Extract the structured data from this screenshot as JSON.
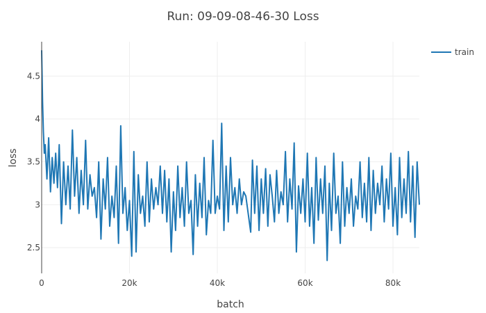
{
  "chart_data": {
    "type": "line",
    "title": "Run: 09-09-08-46-30 Loss",
    "xlabel": "batch",
    "ylabel": "loss",
    "xlim": [
      0,
      86000
    ],
    "ylim": [
      2.2,
      4.9
    ],
    "x_ticks": [
      0,
      20000,
      40000,
      60000,
      80000
    ],
    "x_tick_labels": [
      "0",
      "20k",
      "40k",
      "60k",
      "80k"
    ],
    "y_ticks": [
      2.5,
      3,
      3.5,
      4,
      4.5
    ],
    "y_tick_labels": [
      "2.5",
      "3",
      "3.5",
      "4",
      "4.5"
    ],
    "grid": true,
    "legend_position": "top-right",
    "series": [
      {
        "name": "train",
        "color": "#1f77b4",
        "x": [
          0,
          200,
          400,
          600,
          800,
          1200,
          1600,
          2000,
          2400,
          2800,
          3200,
          3600,
          4000,
          4500,
          5000,
          5500,
          6000,
          6500,
          7000,
          7500,
          8000,
          8500,
          9000,
          9500,
          10000,
          10500,
          11000,
          11500,
          12000,
          12500,
          13000,
          13500,
          14000,
          14500,
          15000,
          15500,
          16000,
          16500,
          17000,
          17500,
          18000,
          18500,
          19000,
          19500,
          20000,
          20500,
          21000,
          21500,
          22000,
          22500,
          23000,
          23500,
          24000,
          24500,
          25000,
          25500,
          26000,
          26500,
          27000,
          27500,
          28000,
          28500,
          29000,
          29500,
          30000,
          30500,
          31000,
          31500,
          32000,
          32500,
          33000,
          33500,
          34000,
          34500,
          35000,
          35500,
          36000,
          36500,
          37000,
          37500,
          38000,
          38500,
          39000,
          39500,
          40000,
          40500,
          41000,
          41500,
          42000,
          42500,
          43000,
          43500,
          44000,
          44500,
          45000,
          45500,
          46000,
          46500,
          47600,
          48000,
          48500,
          49000,
          49500,
          50000,
          50500,
          51000,
          51500,
          52000,
          52500,
          53000,
          53500,
          54000,
          54500,
          55000,
          55500,
          56000,
          56500,
          57000,
          57500,
          58000,
          58500,
          59000,
          59500,
          60000,
          60500,
          61000,
          61500,
          62000,
          62500,
          63000,
          63500,
          64000,
          64500,
          65000,
          65500,
          66000,
          66500,
          67000,
          67500,
          68000,
          68500,
          69000,
          69500,
          70000,
          70500,
          71000,
          71500,
          72000,
          72500,
          73000,
          73500,
          74000,
          74500,
          75000,
          75500,
          76000,
          76500,
          77000,
          77500,
          78000,
          78500,
          79000,
          79500,
          80000,
          80500,
          81000,
          81500,
          82000,
          82500,
          83000,
          83500,
          84000,
          84500,
          85000,
          85500,
          86000
        ],
        "y": [
          4.8,
          4.2,
          3.85,
          3.6,
          3.7,
          3.3,
          3.78,
          3.15,
          3.55,
          3.25,
          3.6,
          3.2,
          3.7,
          2.78,
          3.5,
          3.0,
          3.45,
          2.95,
          3.87,
          3.1,
          3.55,
          2.9,
          3.4,
          3.0,
          3.75,
          2.95,
          3.35,
          3.1,
          3.2,
          2.85,
          3.5,
          2.6,
          3.3,
          2.95,
          3.55,
          2.75,
          3.1,
          2.85,
          3.45,
          2.55,
          3.92,
          2.9,
          3.2,
          2.7,
          3.05,
          2.4,
          3.62,
          2.45,
          3.35,
          2.9,
          3.1,
          2.75,
          3.5,
          2.8,
          3.3,
          2.95,
          3.2,
          3.0,
          3.45,
          2.9,
          3.4,
          2.8,
          3.3,
          2.45,
          3.15,
          2.7,
          3.45,
          2.85,
          3.2,
          2.75,
          3.5,
          2.9,
          3.05,
          2.42,
          3.35,
          2.75,
          3.25,
          2.85,
          3.55,
          2.65,
          3.05,
          2.9,
          3.75,
          2.9,
          3.1,
          2.95,
          3.95,
          2.7,
          3.45,
          2.8,
          3.55,
          3.0,
          3.2,
          2.9,
          3.3,
          3.0,
          3.15,
          3.1,
          2.68,
          3.52,
          2.9,
          3.45,
          2.7,
          3.3,
          2.9,
          3.42,
          2.75,
          3.35,
          3.1,
          2.8,
          3.4,
          2.9,
          3.15,
          3.0,
          3.62,
          2.8,
          3.3,
          2.95,
          3.72,
          2.45,
          3.22,
          2.9,
          3.3,
          2.8,
          3.6,
          2.75,
          3.2,
          2.55,
          3.55,
          2.82,
          3.3,
          2.9,
          3.45,
          2.35,
          3.25,
          2.7,
          3.6,
          2.9,
          3.1,
          2.55,
          3.5,
          2.75,
          3.2,
          2.9,
          3.3,
          2.75,
          3.1,
          2.95,
          3.5,
          2.85,
          3.25,
          2.8,
          3.55,
          2.7,
          3.4,
          2.9,
          3.25,
          3.0,
          3.45,
          2.8,
          3.3,
          2.95,
          3.6,
          2.75,
          3.2,
          2.65,
          3.55,
          2.85,
          3.3,
          2.9,
          3.62,
          2.8,
          3.45,
          2.62,
          3.5,
          3.0
        ]
      }
    ]
  }
}
